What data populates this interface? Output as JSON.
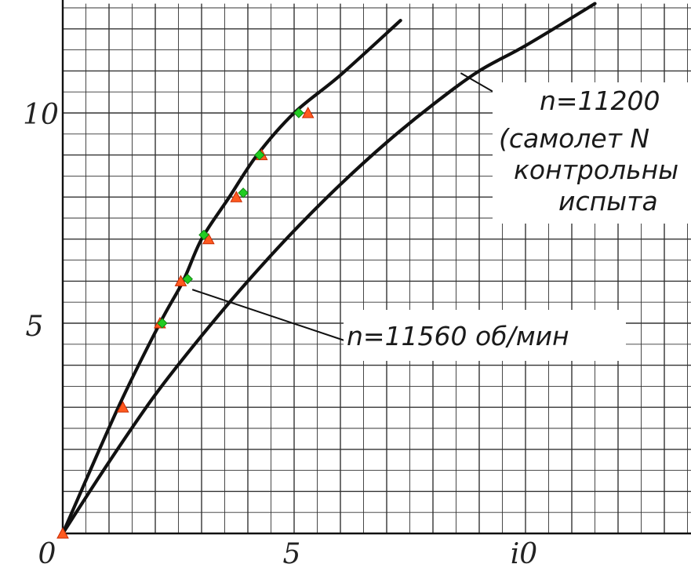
{
  "chart_data": {
    "type": "line",
    "title": "",
    "xlabel": "",
    "ylabel": "",
    "xlim": [
      0,
      15
    ],
    "ylim": [
      0,
      12.6
    ],
    "x_ticks": [
      "0",
      "5",
      "i0"
    ],
    "y_ticks": [
      "10",
      "5"
    ],
    "grid": true,
    "series": [
      {
        "name": "n=11560 об/мин",
        "points": [
          [
            0,
            0
          ],
          [
            1.2,
            3.0
          ],
          [
            2.1,
            5.0
          ],
          [
            2.6,
            6.0
          ],
          [
            3.0,
            7.0
          ],
          [
            3.6,
            8.0
          ],
          [
            4.2,
            9.0
          ],
          [
            5.0,
            10.0
          ],
          [
            6.0,
            10.9
          ],
          [
            7.3,
            12.2
          ]
        ]
      },
      {
        "name": "n=11200 (самолет N контрольны испыта",
        "points": [
          [
            0,
            0
          ],
          [
            1.0,
            1.7
          ],
          [
            2.0,
            3.3
          ],
          [
            3.0,
            4.7
          ],
          [
            4.0,
            6.0
          ],
          [
            5.0,
            7.2
          ],
          [
            6.0,
            8.3
          ],
          [
            7.0,
            9.3
          ],
          [
            8.0,
            10.2
          ],
          [
            9.0,
            11.0
          ],
          [
            10.0,
            11.6
          ],
          [
            11.5,
            12.6
          ]
        ]
      }
    ],
    "markers": [
      {
        "x": 0.0,
        "y": 0.0,
        "symbol": "orange-triangle"
      },
      {
        "x": 1.3,
        "y": 3.0,
        "symbol": "orange-triangle"
      },
      {
        "x": 2.1,
        "y": 5.0,
        "symbol": "orange-triangle"
      },
      {
        "x": 2.55,
        "y": 6.0,
        "symbol": "orange-triangle"
      },
      {
        "x": 3.15,
        "y": 7.0,
        "symbol": "orange-triangle"
      },
      {
        "x": 3.75,
        "y": 8.0,
        "symbol": "orange-triangle"
      },
      {
        "x": 4.3,
        "y": 9.0,
        "symbol": "orange-triangle"
      },
      {
        "x": 5.3,
        "y": 10.0,
        "symbol": "orange-triangle"
      },
      {
        "x": 2.15,
        "y": 5.0,
        "symbol": "green-diamond"
      },
      {
        "x": 2.7,
        "y": 6.05,
        "symbol": "green-diamond"
      },
      {
        "x": 3.05,
        "y": 7.1,
        "symbol": "green-diamond"
      },
      {
        "x": 3.9,
        "y": 8.1,
        "symbol": "green-diamond"
      },
      {
        "x": 4.25,
        "y": 9.0,
        "symbol": "green-diamond"
      },
      {
        "x": 5.1,
        "y": 10.0,
        "symbol": "green-diamond"
      }
    ],
    "annotations": {
      "a1_line1": "n=11200",
      "a1_line2": "(самолет N",
      "a1_line3": "контрольны",
      "a1_line4": "испыта",
      "a2": "n=11560 об/мин"
    },
    "colors": {
      "curve": "#111111",
      "grid": "#333333",
      "triangle": "#ff5a1f",
      "triangle_edge": "#c82800",
      "diamond": "#22cc22",
      "diamond_edge": "#118811"
    }
  }
}
